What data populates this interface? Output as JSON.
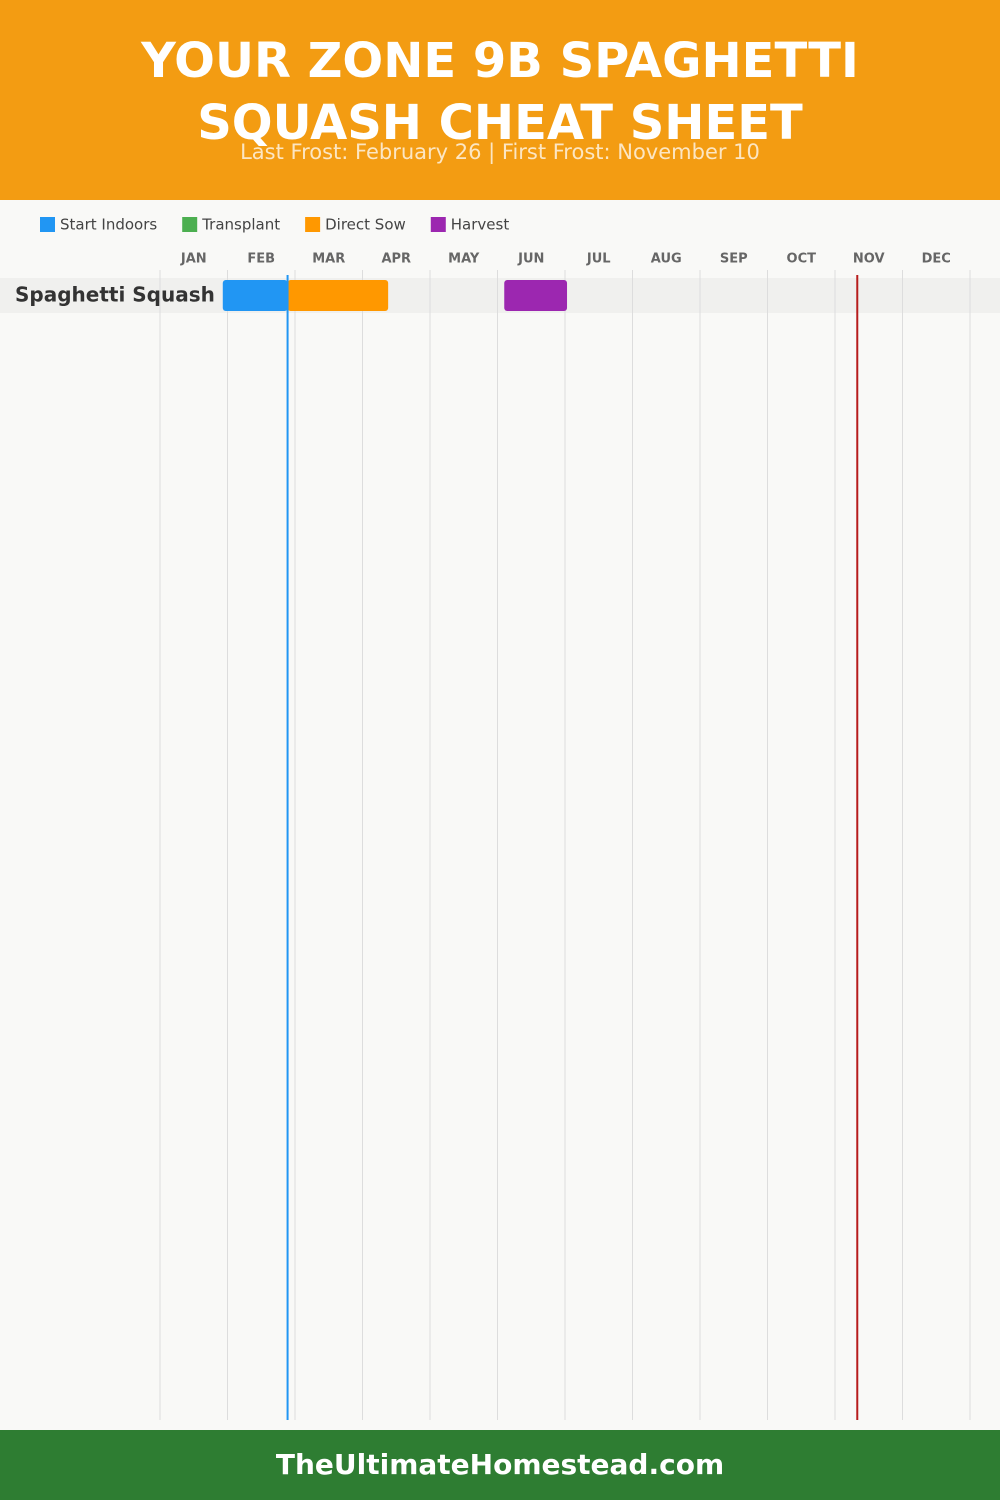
{
  "chart_data": {
    "type": "gantt",
    "title": "YOUR ZONE 9B SPAGHETTI SQUASH CHEAT SHEET",
    "subtitle": "Last Frost: February 26 | First Frost: November 10",
    "categories": [
      "JAN",
      "FEB",
      "MAR",
      "APR",
      "MAY",
      "JUN",
      "JUL",
      "AUG",
      "SEP",
      "OCT",
      "NOV",
      "DEC"
    ],
    "xlim": [
      0,
      12
    ],
    "rows": [
      "Spaghetti Squash"
    ],
    "series": [
      {
        "name": "Start Indoors",
        "color": "#2196f3",
        "start": [
          0.93
        ],
        "end": [
          1.89
        ]
      },
      {
        "name": "Transplant",
        "color": "#4caf50",
        "start": [
          null
        ],
        "end": [
          null
        ]
      },
      {
        "name": "Direct Sow",
        "color": "#ff9800",
        "start": [
          1.89
        ],
        "end": [
          3.38
        ]
      },
      {
        "name": "Harvest",
        "color": "#9c27b0",
        "start": [
          5.1
        ],
        "end": [
          6.03
        ]
      }
    ],
    "markers": [
      {
        "value": 1.89,
        "color": "#2196f3"
      },
      {
        "value": 10.33,
        "color": "#b71c1c"
      }
    ]
  },
  "footer": "TheUltimateHomestead.com"
}
